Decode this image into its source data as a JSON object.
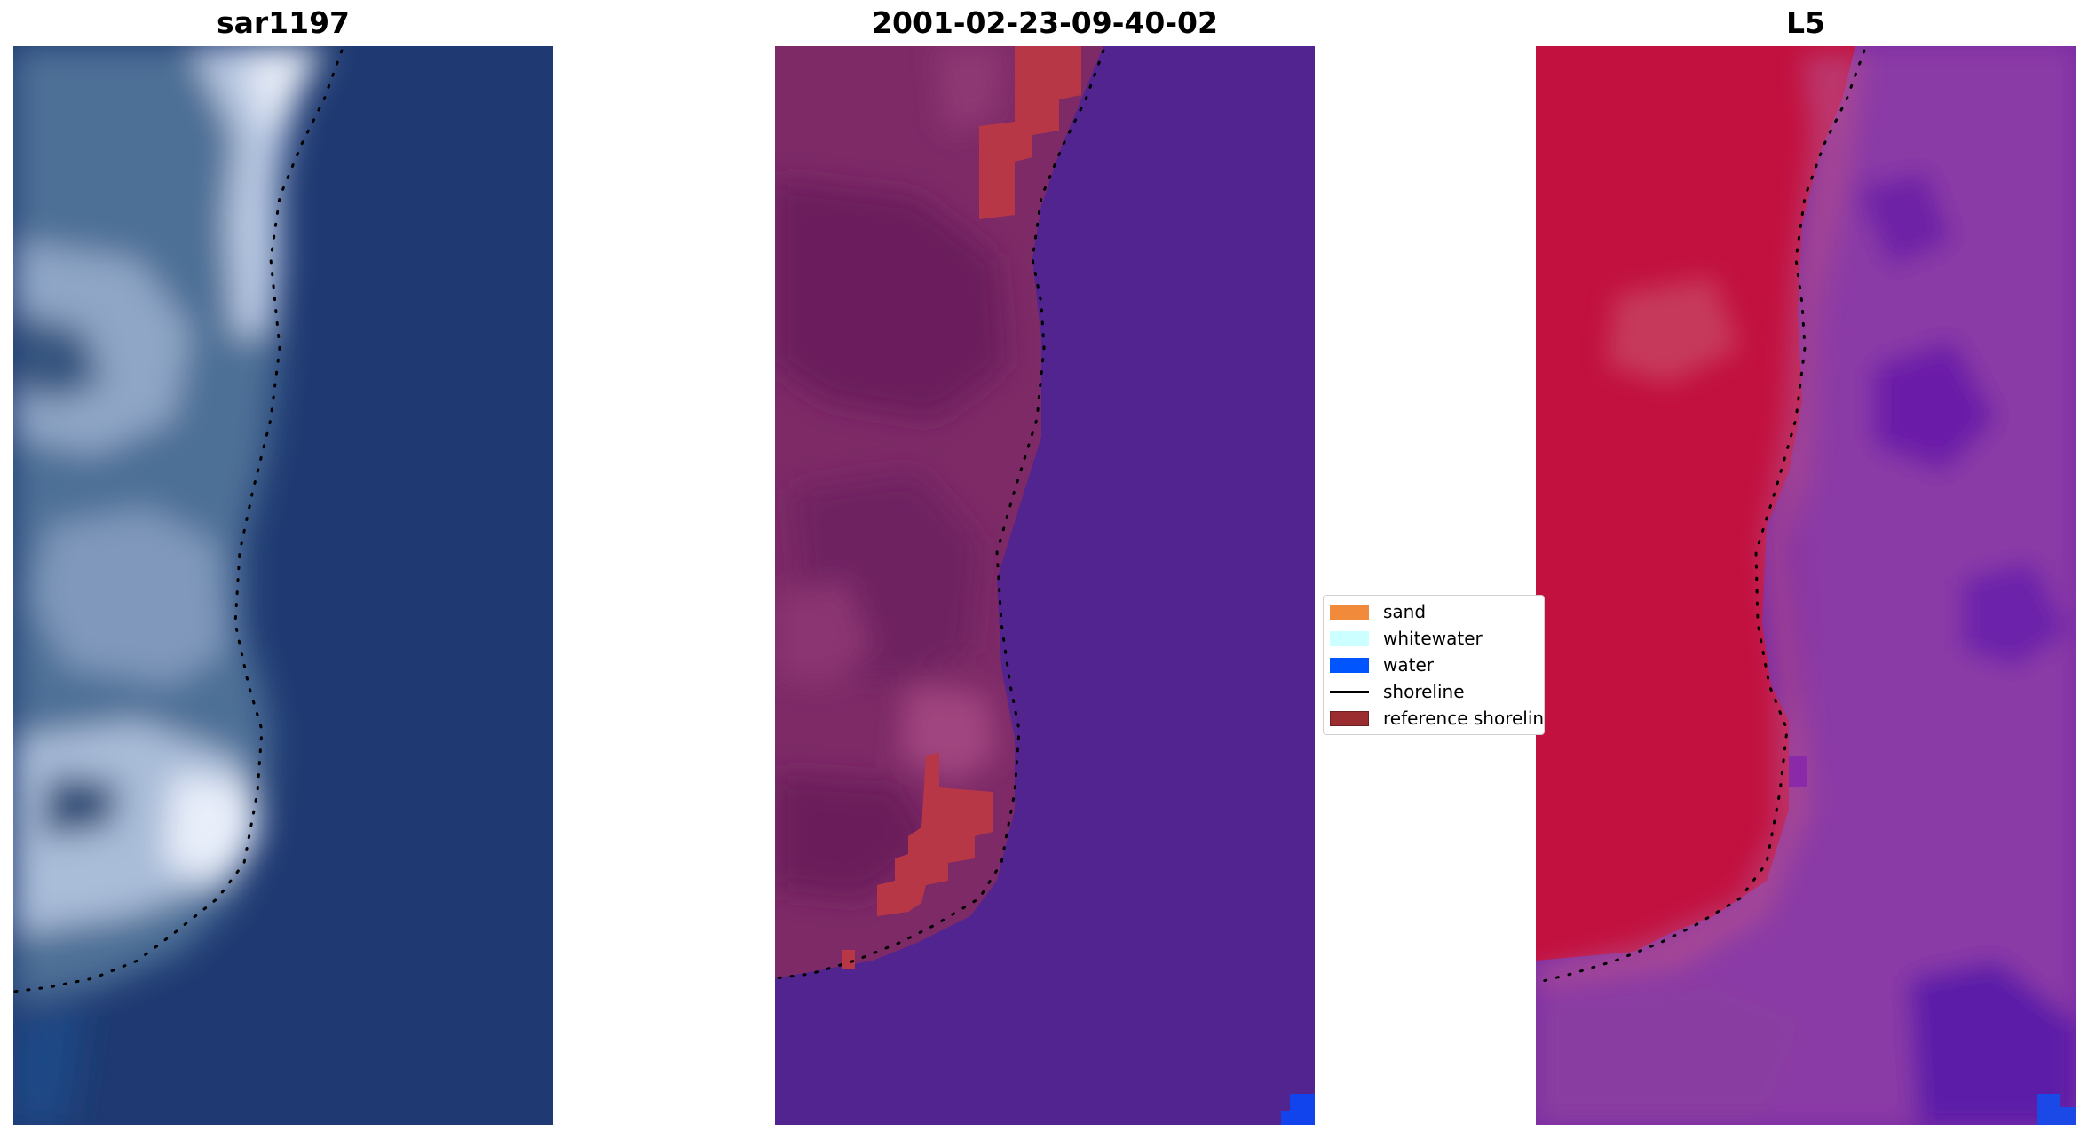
{
  "panels": [
    {
      "title": "sar1197"
    },
    {
      "title": "2001-02-23-09-40-02"
    },
    {
      "title": "L5"
    }
  ],
  "legend": {
    "items": [
      {
        "label": "sand",
        "color": "#f28a3c"
      },
      {
        "label": "whitewater",
        "color": "#ccffff"
      },
      {
        "label": "water",
        "color": "#0055ff"
      },
      {
        "label": "shoreline",
        "color": "#000000"
      },
      {
        "label": "reference shoreline",
        "color": "#9b2d30"
      }
    ]
  },
  "colors": {
    "rgb_water": "#1f3a72",
    "rgb_land": "#4a6f99",
    "classified_water": "#52248f",
    "classified_land": "#7d2a67",
    "classified_reference": "#b83747",
    "mndwi_land": "#c2113f",
    "mndwi_water": "#7a2aa3"
  }
}
